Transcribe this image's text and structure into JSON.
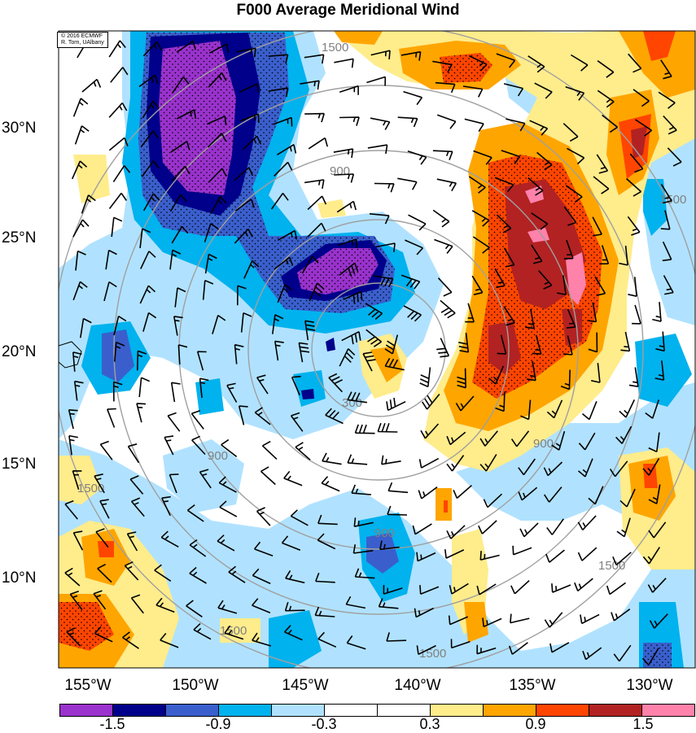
{
  "title": "F000 Average Meridional Wind",
  "credit": {
    "line1": "© 2016 ECMWF",
    "line2": "R. Torn, UAlbany"
  },
  "lat_labels": [
    "30°N",
    "25°N",
    "20°N",
    "15°N",
    "10°N"
  ],
  "lon_labels": [
    "155°W",
    "150°W",
    "145°W",
    "140°W",
    "135°W",
    "130°W"
  ],
  "contour_labels": [
    "300",
    "900",
    "1500"
  ],
  "colorbar": {
    "colors": [
      "#9a32cd",
      "#00008b",
      "#3a5fcd",
      "#00b2ee",
      "#b0e2ff",
      "#ffffff",
      "#ffffff",
      "#ffec8b",
      "#ffa500",
      "#ff4500",
      "#b22222",
      "#ff82ab"
    ],
    "labels": [
      "-1.5",
      "-0.9",
      "-0.3",
      "0.3",
      "0.9",
      "1.5"
    ]
  },
  "colors": {
    "purple": "#9a32cd",
    "navy": "#00008b",
    "royal": "#3a5fcd",
    "sky": "#00b2ee",
    "pale_blue": "#b0e2ff",
    "pale_yellow": "#ffec8b",
    "orange": "#ffa500",
    "red_orange": "#ff4500",
    "firebrick": "#b22222",
    "pink": "#ff82ab",
    "ring": "#a0a0a0"
  }
}
